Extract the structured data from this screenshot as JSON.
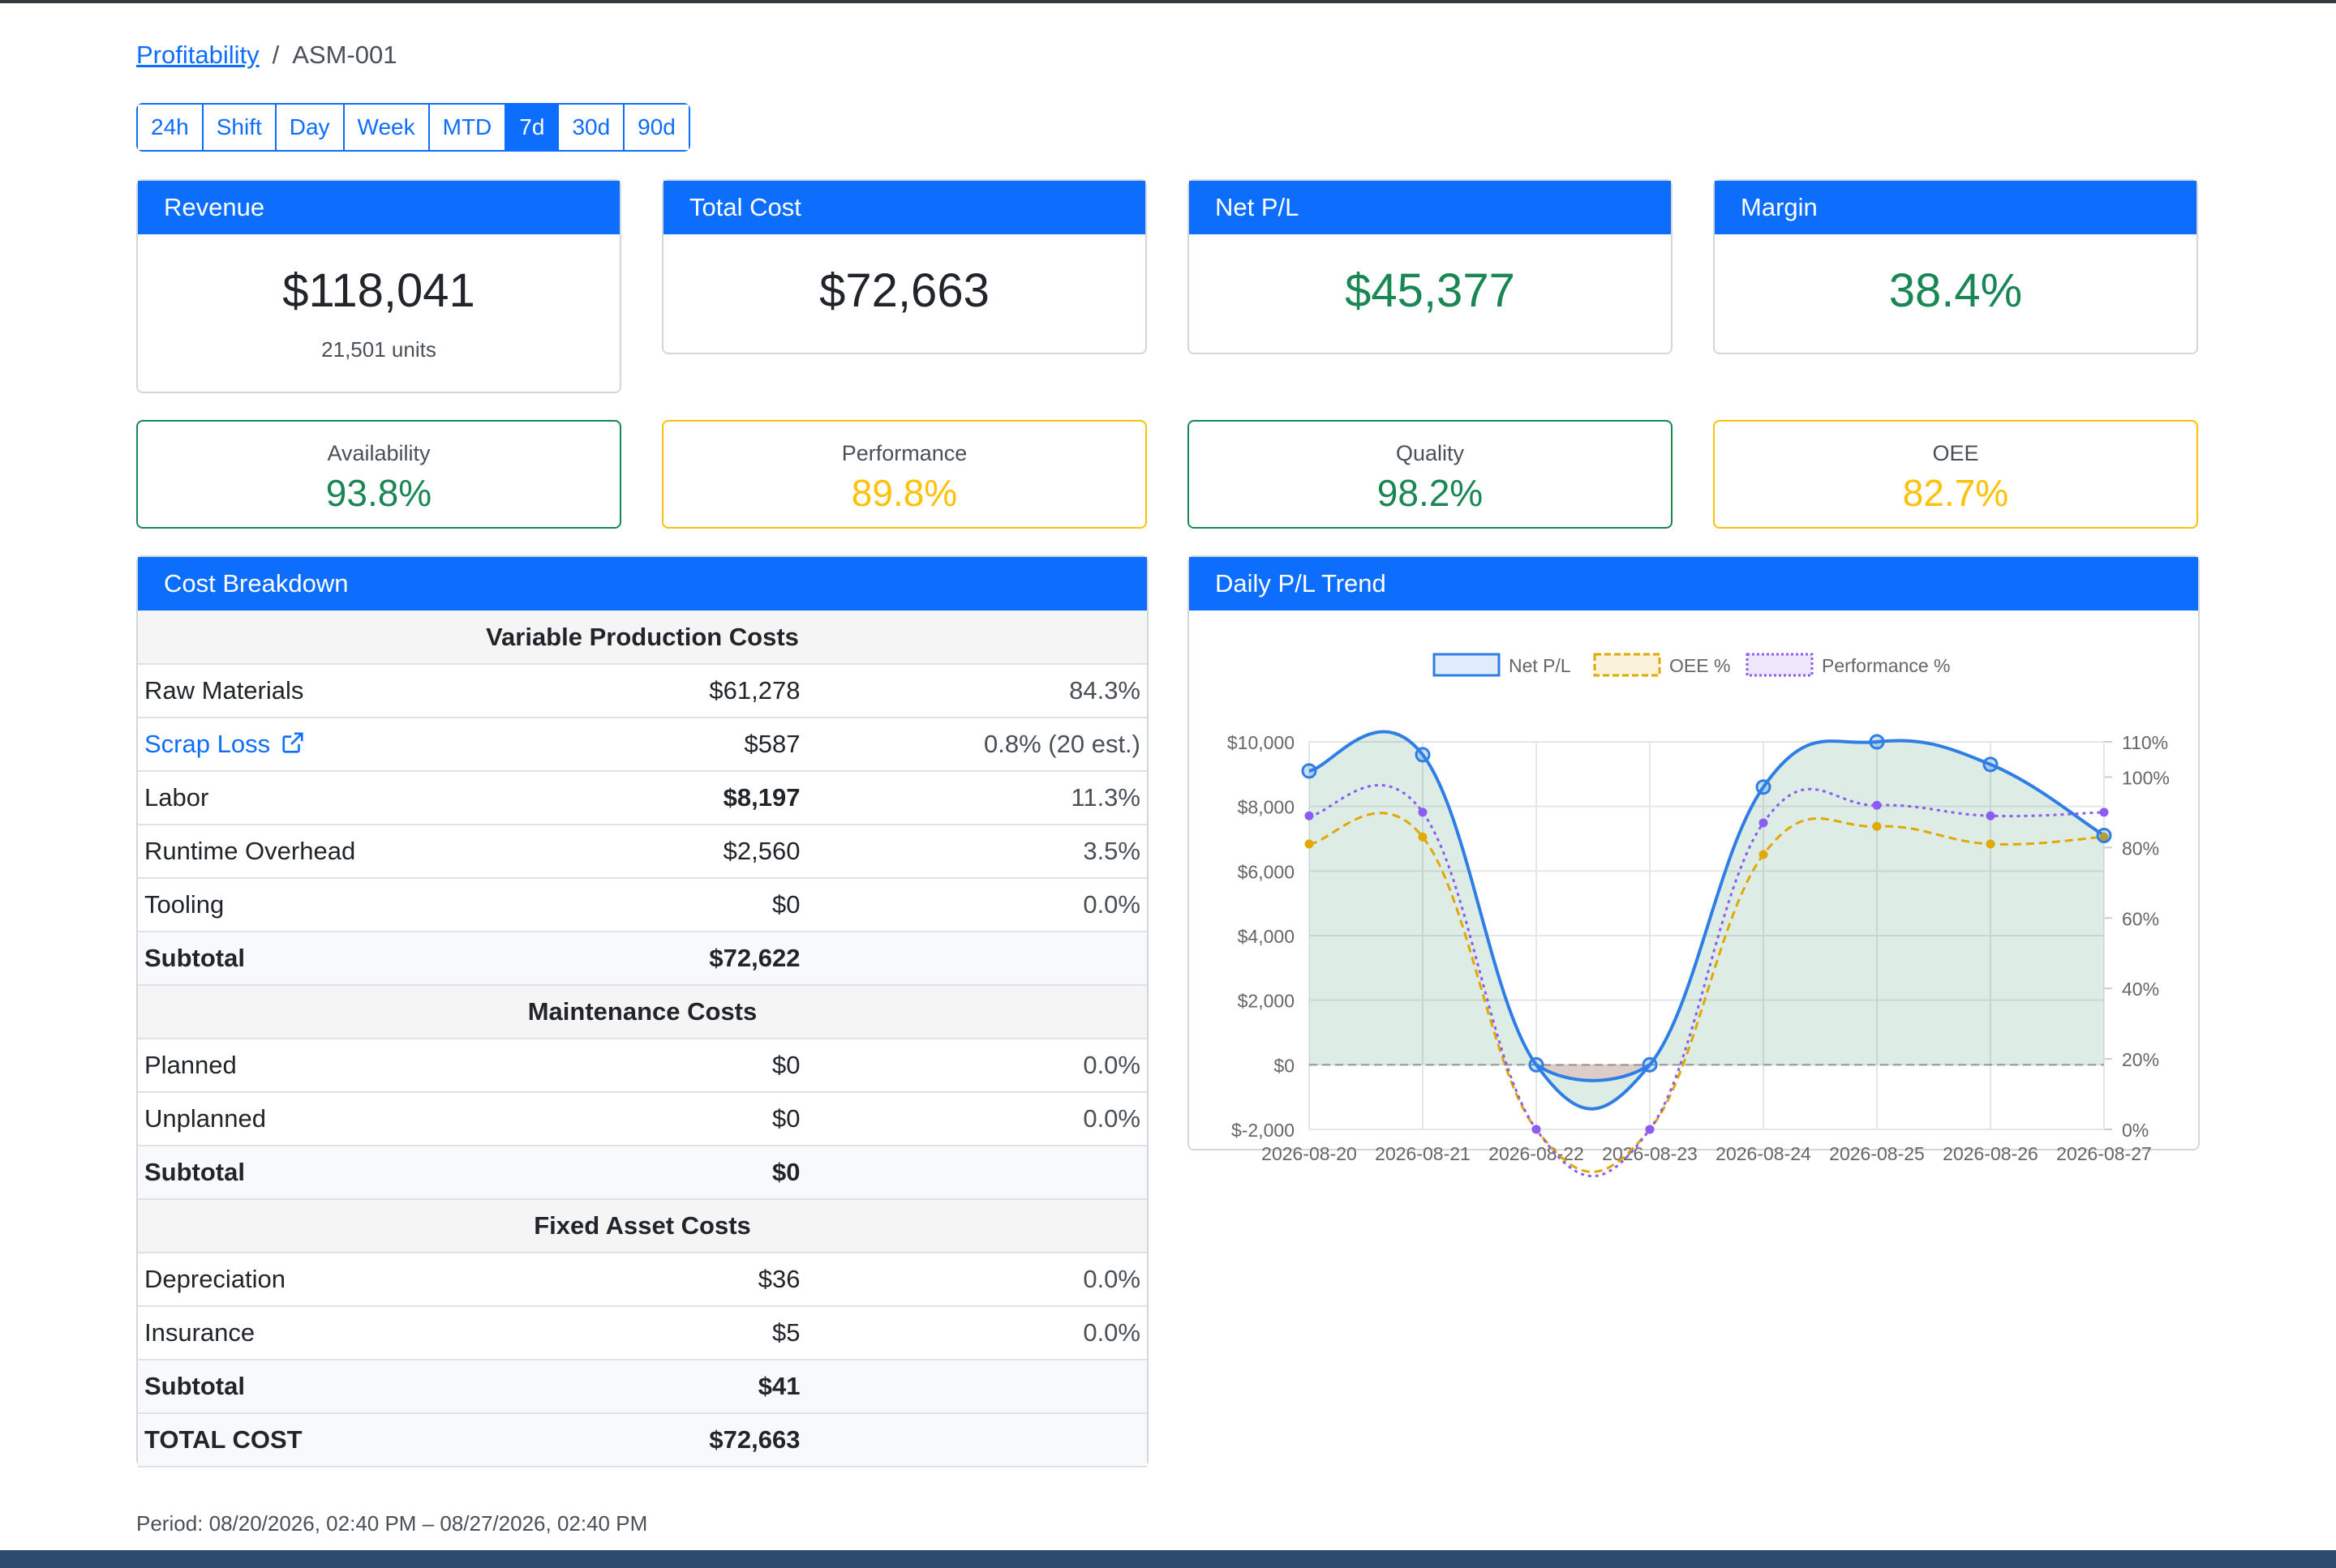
{
  "breadcrumb": {
    "parent": "Profitability",
    "separator": "/",
    "current": "ASM-001"
  },
  "ranges": [
    {
      "label": "24h",
      "active": false
    },
    {
      "label": "Shift",
      "active": false
    },
    {
      "label": "Day",
      "active": false
    },
    {
      "label": "Week",
      "active": false
    },
    {
      "label": "MTD",
      "active": false
    },
    {
      "label": "7d",
      "active": true
    },
    {
      "label": "30d",
      "active": false
    },
    {
      "label": "90d",
      "active": false
    }
  ],
  "kpis": {
    "revenue": {
      "title": "Revenue",
      "value": "$118,041",
      "sub": "21,501 units"
    },
    "total_cost": {
      "title": "Total Cost",
      "value": "$72,663"
    },
    "net_pl": {
      "title": "Net P/L",
      "value": "$45,377"
    },
    "margin": {
      "title": "Margin",
      "value": "38.4%"
    }
  },
  "oee": {
    "availability": {
      "label": "Availability",
      "value": "93.8%"
    },
    "performance": {
      "label": "Performance",
      "value": "89.8%"
    },
    "quality": {
      "label": "Quality",
      "value": "98.2%"
    },
    "oee": {
      "label": "OEE",
      "value": "82.7%"
    }
  },
  "cost_breakdown": {
    "title": "Cost Breakdown",
    "variable": {
      "heading": "Variable Production Costs",
      "raw_materials": {
        "label": "Raw Materials",
        "amount": "$61,278",
        "pct": "84.3%"
      },
      "scrap_loss": {
        "label": "Scrap Loss",
        "amount": "$587",
        "pct": "0.8%  (20 est.)"
      },
      "labor": {
        "label": "Labor",
        "amount": "$8,197",
        "pct": "11.3%"
      },
      "runtime_overhead": {
        "label": "Runtime Overhead",
        "amount": "$2,560",
        "pct": "3.5%"
      },
      "tooling": {
        "label": "Tooling",
        "amount": "$0",
        "pct": "0.0%"
      },
      "subtotal": {
        "label": "Subtotal",
        "amount": "$72,622"
      }
    },
    "maintenance": {
      "heading": "Maintenance Costs",
      "planned": {
        "label": "Planned",
        "amount": "$0",
        "pct": "0.0%"
      },
      "unplanned": {
        "label": "Unplanned",
        "amount": "$0",
        "pct": "0.0%"
      },
      "subtotal": {
        "label": "Subtotal",
        "amount": "$0"
      }
    },
    "fixed": {
      "heading": "Fixed Asset Costs",
      "depreciation": {
        "label": "Depreciation",
        "amount": "$36",
        "pct": "0.0%"
      },
      "insurance": {
        "label": "Insurance",
        "amount": "$5",
        "pct": "0.0%"
      },
      "subtotal": {
        "label": "Subtotal",
        "amount": "$41"
      }
    },
    "total": {
      "label": "TOTAL COST",
      "amount": "$72,663"
    }
  },
  "trend": {
    "title": "Daily P/L Trend"
  },
  "chart_data": {
    "type": "line",
    "x": [
      "2026-08-20",
      "2026-08-21",
      "2026-08-22",
      "2026-08-23",
      "2026-08-24",
      "2026-08-25",
      "2026-08-26",
      "2026-08-27"
    ],
    "series": [
      {
        "name": "Net P/L",
        "axis": "left",
        "values": [
          9100,
          9600,
          0,
          0,
          8600,
          10000,
          9300,
          7100
        ],
        "color": "#2f7ee6"
      },
      {
        "name": "OEE %",
        "axis": "right",
        "values": [
          81,
          83,
          0,
          0,
          78,
          86,
          81,
          83
        ],
        "color": "#e0a800"
      },
      {
        "name": "Performance %",
        "axis": "right",
        "values": [
          89,
          90,
          0,
          0,
          87,
          92,
          89,
          90
        ],
        "color": "#8b5cf6"
      }
    ],
    "y_left": {
      "min": -2000,
      "max": 10000,
      "ticks": [
        "$-2,000",
        "$0",
        "$2,000",
        "$4,000",
        "$6,000",
        "$8,000",
        "$10,000"
      ]
    },
    "y_right": {
      "min": 0,
      "max": 110,
      "ticks": [
        "0%",
        "20%",
        "40%",
        "60%",
        "80%",
        "100%",
        "110%"
      ]
    },
    "grid": true,
    "legend": "top"
  },
  "period": "Period: 08/20/2026, 02:40 PM – 08/27/2026, 02:40 PM"
}
